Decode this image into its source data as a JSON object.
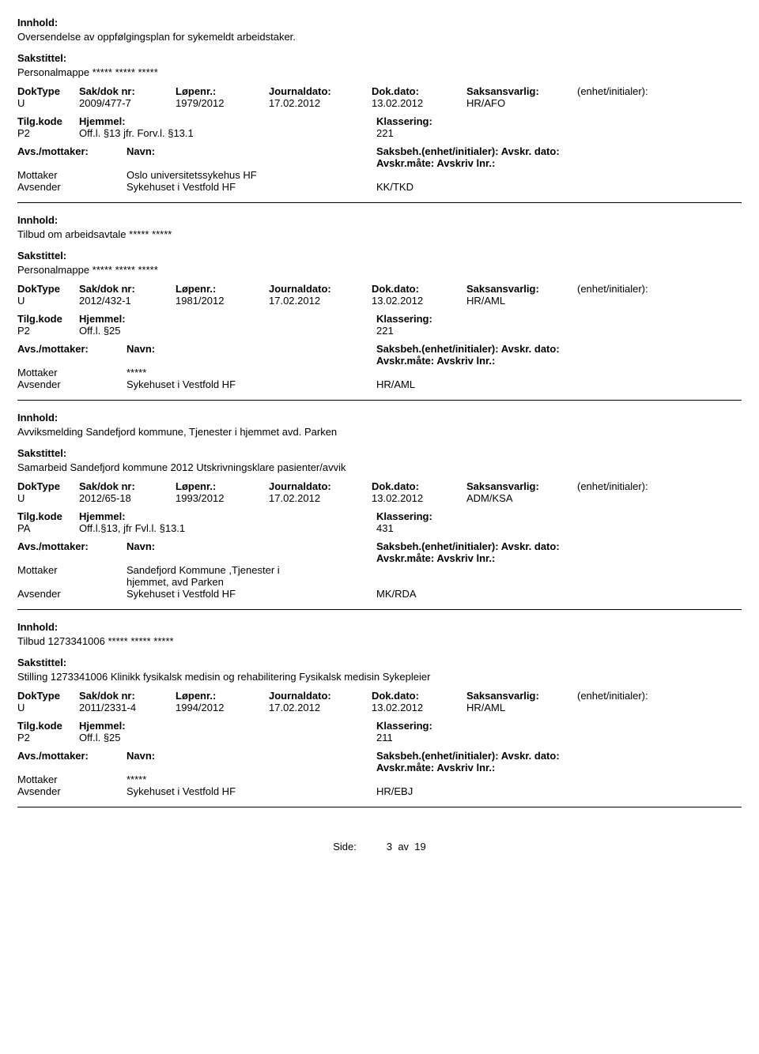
{
  "labels": {
    "innhold": "Innhold:",
    "sakstittel": "Sakstittel:",
    "doktype": "DokType",
    "sakdoknr": "Sak/dok nr:",
    "lopenr": "Løpenr.:",
    "journaldato": "Journaldato:",
    "dokdato": "Dok.dato:",
    "saksansvarlig": "Saksansvarlig:",
    "enhet_init": "(enhet/initialer):",
    "tilgkode": "Tilg.kode",
    "hjemmel": "Hjemmel:",
    "klassering": "Klassering:",
    "avs_mottaker": "Avs./mottaker:",
    "navn": "Navn:",
    "saksbeh_line": "Saksbeh.(enhet/initialer): Avskr. dato:  Avskr.måte: Avskriv lnr.:",
    "mottaker": "Mottaker",
    "avsender": "Avsender",
    "side": "Side:",
    "av": "av"
  },
  "page": {
    "current": "3",
    "total": "19"
  },
  "records": [
    {
      "innhold": "Oversendelse av oppfølgingsplan for sykemeldt arbeidstaker.",
      "sakstittel": "Personalmappe ***** ***** *****",
      "doktype": "U",
      "sakdoknr": "2009/477-7",
      "lopenr": "1979/2012",
      "journaldato": "17.02.2012",
      "dokdato": "13.02.2012",
      "saksansvarlig": "HR/AFO",
      "tilgkode": "P2",
      "hjemmel": "Off.l. §13  jfr. Forv.l. §13.1",
      "klassering": "221",
      "mottaker": "Oslo universitetssykehus HF",
      "avsender": "Sykehuset i Vestfold HF",
      "avsender_code": "KK/TKD"
    },
    {
      "innhold": "Tilbud om arbeidsavtale ***** *****",
      "sakstittel": "Personalmappe ***** ***** *****",
      "doktype": "U",
      "sakdoknr": "2012/432-1",
      "lopenr": "1981/2012",
      "journaldato": "17.02.2012",
      "dokdato": "13.02.2012",
      "saksansvarlig": "HR/AML",
      "tilgkode": "P2",
      "hjemmel": "Off.l. §25",
      "klassering": "221",
      "mottaker": "*****",
      "avsender": "Sykehuset i Vestfold HF",
      "avsender_code": "HR/AML"
    },
    {
      "innhold": "Avviksmelding Sandefjord kommune, Tjenester i hjemmet avd. Parken",
      "sakstittel": "Samarbeid Sandefjord kommune 2012 Utskrivningsklare pasienter/avvik",
      "doktype": "U",
      "sakdoknr": "2012/65-18",
      "lopenr": "1993/2012",
      "journaldato": "17.02.2012",
      "dokdato": "13.02.2012",
      "saksansvarlig": "ADM/KSA",
      "tilgkode": "PA",
      "hjemmel": "Off.l.§13, jfr Fvl.l. §13.1",
      "klassering": "431",
      "mottaker": "Sandefjord Kommune ,Tjenester i hjemmet, avd Parken",
      "avsender": "Sykehuset i Vestfold HF",
      "avsender_code": "MK/RDA"
    },
    {
      "innhold": "Tilbud 1273341006 ***** ***** *****",
      "sakstittel": "Stilling 1273341006 Klinikk fysikalsk medisin og rehabilitering Fysikalsk medisin Sykepleier",
      "doktype": "U",
      "sakdoknr": "2011/2331-4",
      "lopenr": "1994/2012",
      "journaldato": "17.02.2012",
      "dokdato": "13.02.2012",
      "saksansvarlig": "HR/AML",
      "tilgkode": "P2",
      "hjemmel": "Off.l. §25",
      "klassering": "211",
      "mottaker": "*****",
      "avsender": "Sykehuset i Vestfold HF",
      "avsender_code": "HR/EBJ"
    }
  ]
}
